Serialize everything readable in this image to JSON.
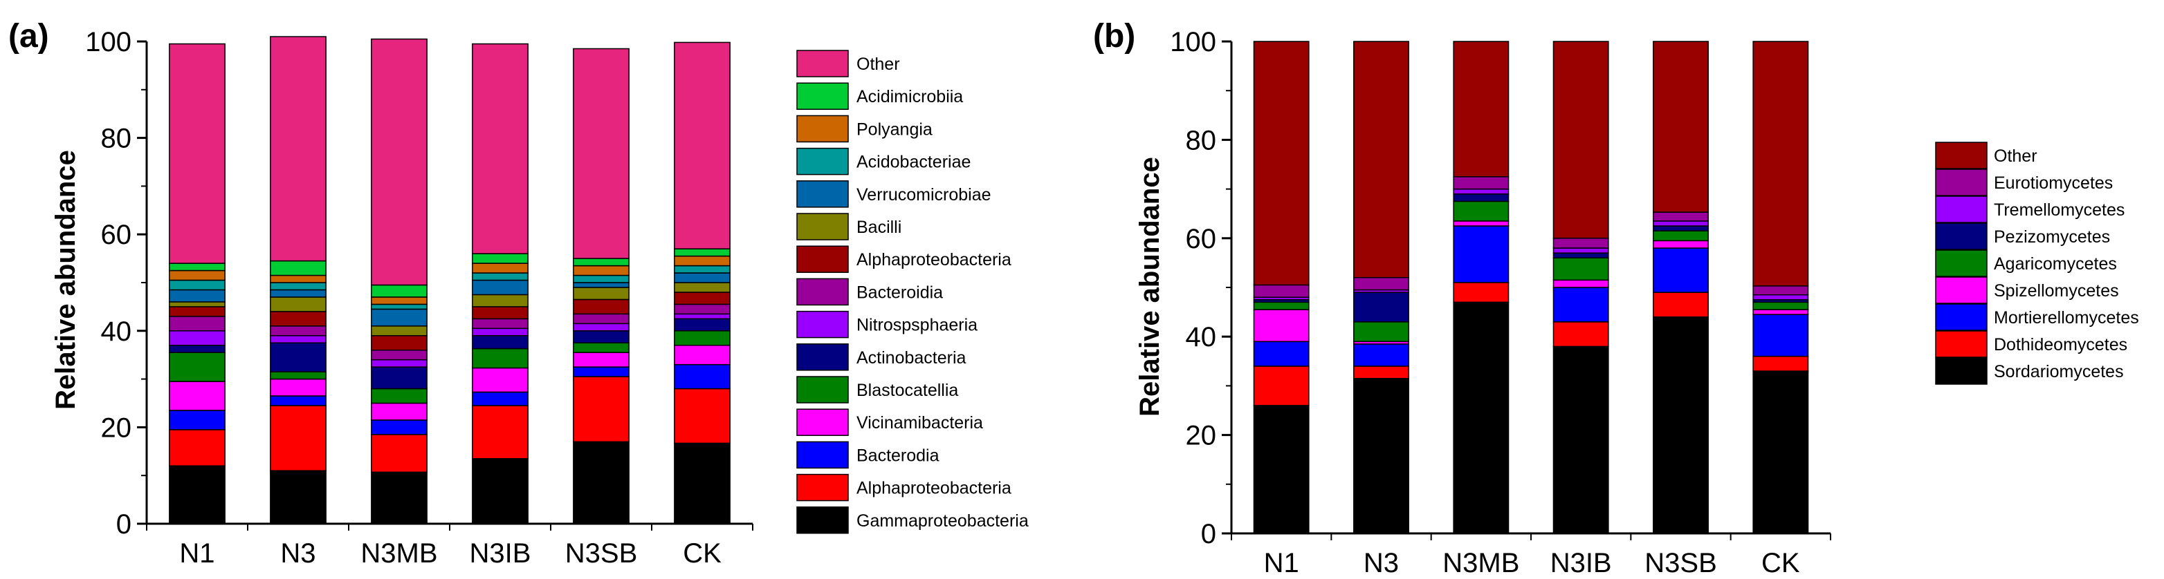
{
  "chart_data": [
    {
      "type": "bar",
      "stacked": true,
      "panel_label": "(a)",
      "ylabel": "Relative abundance",
      "xlabel": "",
      "ylim": [
        0,
        100
      ],
      "yticks": [
        0,
        20,
        40,
        60,
        80,
        100
      ],
      "grid": false,
      "legend_position": "right",
      "categories": [
        "N1",
        "N3",
        "N3MB",
        "N3IB",
        "N3SB",
        "CK"
      ],
      "series": [
        {
          "name": "Gammaproteobacteria",
          "color": "#000000",
          "values": [
            12,
            11,
            10.7,
            13.5,
            17,
            16.7
          ]
        },
        {
          "name": "Alphaproteobacteria",
          "color": "#ff0000",
          "values": [
            7.5,
            13.5,
            7.8,
            11,
            13.5,
            11.3
          ]
        },
        {
          "name": "Bacterodia",
          "color": "#0000ff",
          "values": [
            4,
            2,
            3,
            2.8,
            2,
            5
          ]
        },
        {
          "name": "Vicinamibacteria",
          "color": "#ff00ff",
          "values": [
            6,
            3.5,
            3.5,
            5,
            3,
            4
          ]
        },
        {
          "name": "Blastocatellia",
          "color": "#008000",
          "values": [
            6,
            1.5,
            3,
            4,
            2,
            3
          ]
        },
        {
          "name": "Actinobacteria",
          "color": "#000080",
          "values": [
            1.5,
            6,
            4.5,
            2.7,
            2.5,
            2.5
          ]
        },
        {
          "name": "Nitrospsphaeria",
          "color": "#9900ff",
          "values": [
            3,
            1.5,
            1.5,
            1.5,
            1.5,
            1
          ]
        },
        {
          "name": "Bacteroidia",
          "color": "#990099",
          "values": [
            3,
            2,
            2,
            2,
            2,
            2
          ]
        },
        {
          "name": "Alphaproteobacteria",
          "color": "#990000",
          "values": [
            2,
            3,
            3,
            2.5,
            3,
            2.5
          ]
        },
        {
          "name": "Bacilli",
          "color": "#808000",
          "values": [
            1,
            3,
            2,
            2.5,
            2.5,
            2
          ]
        },
        {
          "name": "Verrucomicrobiae",
          "color": "#0066aa",
          "values": [
            2.5,
            1.5,
            3.5,
            3,
            1,
            2
          ]
        },
        {
          "name": "Acidobacteriae",
          "color": "#009999",
          "values": [
            2,
            1.5,
            1,
            1.5,
            1.5,
            1.5
          ]
        },
        {
          "name": "Polyangia",
          "color": "#cc6600",
          "values": [
            2,
            1.5,
            1.5,
            2,
            2,
            2
          ]
        },
        {
          "name": "Acidimicrobiia",
          "color": "#00cc33",
          "values": [
            1.5,
            3,
            2.5,
            2,
            1.5,
            1.5
          ]
        },
        {
          "name": "Other",
          "color": "#e6267e",
          "values": [
            45.5,
            46.5,
            51,
            43.5,
            43.5,
            42.8
          ]
        }
      ]
    },
    {
      "type": "bar",
      "stacked": true,
      "panel_label": "(b)",
      "ylabel": "Relative abundance",
      "xlabel": "",
      "ylim": [
        0,
        100
      ],
      "yticks": [
        0,
        20,
        40,
        60,
        80,
        100
      ],
      "grid": false,
      "legend_position": "right",
      "categories": [
        "N1",
        "N3",
        "N3MB",
        "N3IB",
        "N3SB",
        "CK"
      ],
      "series": [
        {
          "name": "Sordariomycetes",
          "color": "#000000",
          "values": [
            26,
            31.5,
            47,
            38,
            44,
            33
          ]
        },
        {
          "name": "Dothideomycetes",
          "color": "#ff0000",
          "values": [
            8,
            2.5,
            4,
            5,
            5,
            3
          ]
        },
        {
          "name": "Mortierellomycetes",
          "color": "#0000ff",
          "values": [
            5,
            4.5,
            11.5,
            7,
            9,
            8.5
          ]
        },
        {
          "name": "Spizellomycetes",
          "color": "#ff00ff",
          "values": [
            6.5,
            0.5,
            1,
            1.5,
            1.5,
            1
          ]
        },
        {
          "name": "Agaricomycetes",
          "color": "#008000",
          "values": [
            1.5,
            4,
            4,
            4.5,
            2,
            1.5
          ]
        },
        {
          "name": "Pezizomycetes",
          "color": "#000080",
          "values": [
            0.5,
            6,
            1.5,
            1,
            1,
            0.5
          ]
        },
        {
          "name": "Tremellomycetes",
          "color": "#9900ff",
          "values": [
            0.5,
            0.5,
            1,
            1,
            1,
            1
          ]
        },
        {
          "name": "Eurotiomycetes",
          "color": "#990099",
          "values": [
            2.5,
            2.5,
            2.5,
            2,
            1.8,
            1.8
          ]
        },
        {
          "name": "Other",
          "color": "#990000",
          "values": [
            49.5,
            48,
            27.5,
            40,
            34.7,
            49.7
          ]
        }
      ]
    }
  ]
}
